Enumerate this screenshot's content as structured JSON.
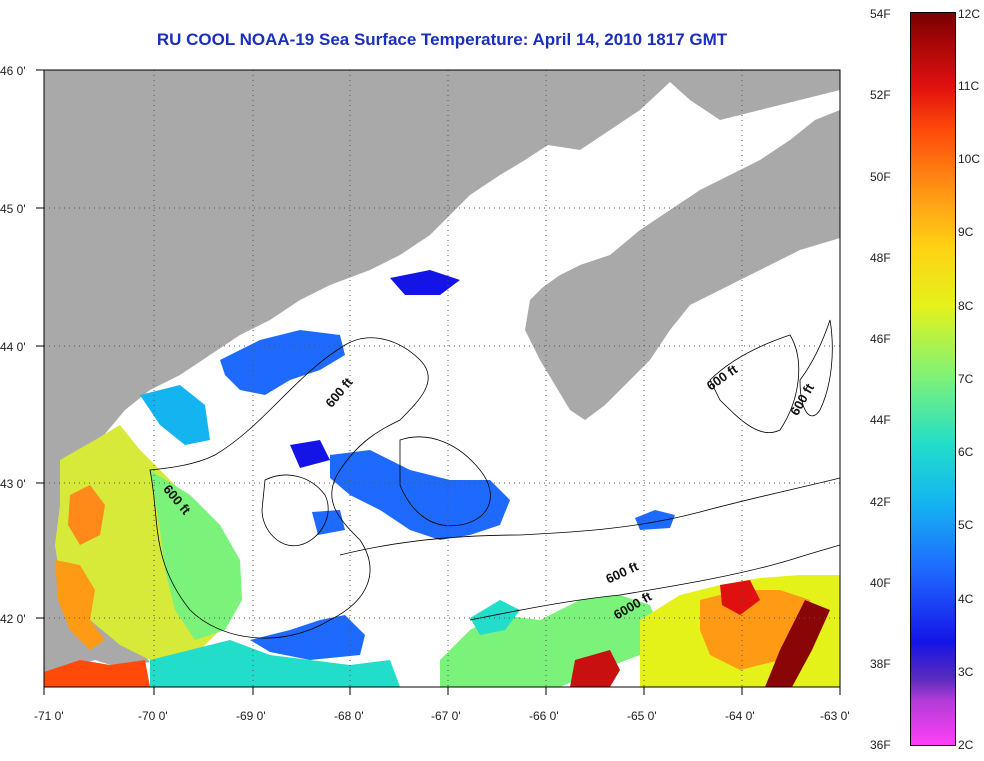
{
  "title": "RU COOL  NOAA-19  Sea Surface Temperature:  April 14, 2010 1817 GMT",
  "axes": {
    "x_ticks": [
      "-71 0'",
      "-70 0'",
      "-69 0'",
      "-68 0'",
      "-67 0'",
      "-66 0'",
      "-65 0'",
      "-64 0'",
      "-63 0'"
    ],
    "y_ticks": [
      "46 0'",
      "45 0'",
      "44 0'",
      "43 0'",
      "42 0'"
    ]
  },
  "colorbar": {
    "fahrenheit": [
      "54F",
      "52F",
      "50F",
      "48F",
      "46F",
      "44F",
      "42F",
      "40F",
      "38F",
      "36F"
    ],
    "celsius": [
      "12C",
      "11C",
      "10C",
      "9C",
      "8C",
      "7C",
      "6C",
      "5C",
      "4C",
      "3C",
      "2C"
    ],
    "colors": [
      "#ff3ff5",
      "#5b2bbd",
      "#1414e6",
      "#14b4f0",
      "#7bf27a",
      "#e4f21a",
      "#ff9a14",
      "#e01010",
      "#7a0000"
    ]
  },
  "contours": {
    "label_600_1": "600 ft",
    "label_600_2": "600 ft",
    "label_600_3": "600 ft",
    "label_600_4": "600 ft",
    "label_600_5": "600 ft",
    "label_6000": "6000 ft"
  },
  "colors": {
    "land": "#a9a9a9",
    "cloud": "#ffffff",
    "title": "#1a2fbf"
  }
}
